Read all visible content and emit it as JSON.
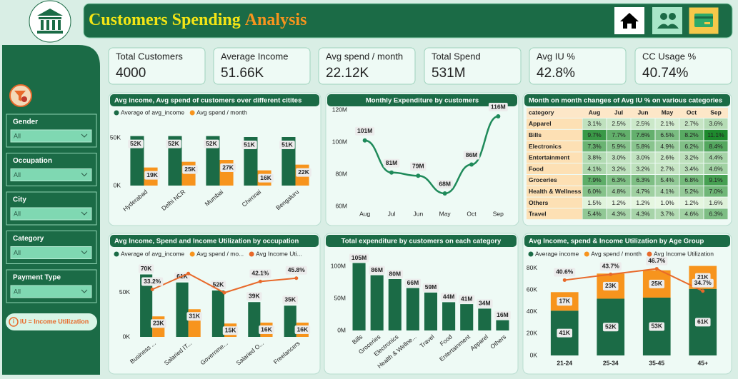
{
  "header": {
    "title_part1": "Customers Spending",
    "title_part2": "Analysis"
  },
  "kpis": [
    {
      "label": "Total Customers",
      "value": "4000"
    },
    {
      "label": "Average Income",
      "value": "51.66K"
    },
    {
      "label": "Avg spend / month",
      "value": "22.12K"
    },
    {
      "label": "Total Spend",
      "value": "531M"
    },
    {
      "label": "Avg IU %",
      "value": "42.8%"
    },
    {
      "label": "CC Usage %",
      "value": "40.74%"
    }
  ],
  "filters": [
    {
      "label": "Gender",
      "value": "All"
    },
    {
      "label": "Occupation",
      "value": "All"
    },
    {
      "label": "City",
      "value": "All"
    },
    {
      "label": "Category",
      "value": "All"
    },
    {
      "label": "Payment Type",
      "value": "All"
    }
  ],
  "note": "IU = Income Utilization",
  "chart_data": [
    {
      "type": "bar",
      "title": "Avg income, Avg spend of customers over different citites",
      "categories": [
        "Hyderabad",
        "Delhi NCR",
        "Mumbai",
        "Chennai",
        "Bengaluru"
      ],
      "series": [
        {
          "name": "Average of avg_income",
          "color": "#1b6b46",
          "values": [
            52000,
            52000,
            52000,
            51000,
            51000
          ],
          "value_labels": [
            "52K",
            "52K",
            "52K",
            "51K",
            "51K"
          ]
        },
        {
          "name": "Avg spend / month",
          "color": "#f7941d",
          "values": [
            19000,
            25000,
            27000,
            16000,
            22000
          ],
          "value_labels": [
            "19K",
            "25K",
            "27K",
            "16K",
            "22K"
          ]
        }
      ],
      "ylim": [
        0,
        60000
      ],
      "yticks": [
        {
          "value": 0,
          "label": "0K"
        },
        {
          "value": 50000,
          "label": "50K"
        }
      ]
    },
    {
      "type": "line",
      "title": "Monthly Expenditure by customers",
      "categories": [
        "Aug",
        "Jul",
        "Jun",
        "May",
        "Oct",
        "Sep"
      ],
      "values": [
        101000000,
        81000000,
        79000000,
        68000000,
        86000000,
        116000000
      ],
      "value_labels": [
        "101M",
        "81M",
        "79M",
        "68M",
        "86M",
        "116M"
      ],
      "color": "#1f8a5a",
      "ylim": [
        60000000,
        120000000
      ],
      "yticks": [
        {
          "value": 60000000,
          "label": "60M"
        },
        {
          "value": 80000000,
          "label": "80M"
        },
        {
          "value": 100000000,
          "label": "100M"
        },
        {
          "value": 120000000,
          "label": "120M"
        }
      ]
    },
    {
      "type": "heatmap",
      "title": "Month on month changes of Avg IU % on various categories",
      "column_header": "category",
      "columns": [
        "Aug",
        "Jul",
        "Jun",
        "May",
        "Oct",
        "Sep"
      ],
      "rows": [
        "Apparel",
        "Bills",
        "Electronics",
        "Entertainment",
        "Food",
        "Groceries",
        "Health & Wellness",
        "Others",
        "Travel"
      ],
      "values": [
        [
          3.1,
          2.5,
          2.5,
          2.1,
          2.7,
          3.6
        ],
        [
          9.7,
          7.7,
          7.6,
          6.5,
          8.2,
          11.1
        ],
        [
          7.3,
          5.9,
          5.8,
          4.9,
          6.2,
          8.4
        ],
        [
          3.8,
          3.0,
          3.0,
          2.6,
          3.2,
          4.4
        ],
        [
          4.1,
          3.2,
          3.2,
          2.7,
          3.4,
          4.6
        ],
        [
          7.9,
          6.3,
          6.3,
          5.4,
          6.8,
          9.1
        ],
        [
          6.0,
          4.8,
          4.7,
          4.1,
          5.2,
          7.0
        ],
        [
          1.5,
          1.2,
          1.2,
          1.0,
          1.2,
          1.6
        ],
        [
          5.4,
          4.3,
          4.3,
          3.7,
          4.6,
          6.3
        ]
      ],
      "value_labels": [
        [
          "3.1%",
          "2.5%",
          "2.5%",
          "2.1%",
          "2.7%",
          "3.6%"
        ],
        [
          "9.7%",
          "7.7%",
          "7.6%",
          "6.5%",
          "8.2%",
          "11.1%"
        ],
        [
          "7.3%",
          "5.9%",
          "5.8%",
          "4.9%",
          "6.2%",
          "8.4%"
        ],
        [
          "3.8%",
          "3.0%",
          "3.0%",
          "2.6%",
          "3.2%",
          "4.4%"
        ],
        [
          "4.1%",
          "3.2%",
          "3.2%",
          "2.7%",
          "3.4%",
          "4.6%"
        ],
        [
          "7.9%",
          "6.3%",
          "6.3%",
          "5.4%",
          "6.8%",
          "9.1%"
        ],
        [
          "6.0%",
          "4.8%",
          "4.7%",
          "4.1%",
          "5.2%",
          "7.0%"
        ],
        [
          "1.5%",
          "1.2%",
          "1.2%",
          "1.0%",
          "1.2%",
          "1.6%"
        ],
        [
          "5.4%",
          "4.3%",
          "4.3%",
          "3.7%",
          "4.6%",
          "6.3%"
        ]
      ],
      "colors": [
        "#e9f8e4",
        "#1e8a2e"
      ]
    },
    {
      "type": "combo",
      "title": "Avg Income, Spend and Income Utilization by occupation",
      "categories": [
        "Business ...",
        "Salaried IT...",
        "Governme...",
        "Salaried O...",
        "Freelancers"
      ],
      "series": [
        {
          "name": "Average of avg_income",
          "color": "#1b6b46",
          "values": [
            70000,
            61000,
            52000,
            39000,
            35000
          ],
          "value_labels": [
            "70K",
            "61K",
            "52K",
            "39K",
            "35K"
          ]
        },
        {
          "name": "Avg spend / mo...",
          "color": "#f7941d",
          "values": [
            23000,
            31000,
            15000,
            16000,
            16000
          ],
          "value_labels": [
            "23K",
            "31K",
            "15K",
            "16K",
            "16K"
          ]
        },
        {
          "name": "Avg Income Uti...",
          "color": "#e8692a",
          "axis": "y2",
          "values": [
            33.2,
            51,
            29.5,
            42.1,
            45.8
          ],
          "value_labels": [
            "33.2%",
            null,
            null,
            "42.1%",
            "45.8%"
          ]
        }
      ],
      "ylim": [
        0,
        80000
      ],
      "yticks": [
        {
          "value": 0,
          "label": "0K"
        },
        {
          "value": 50000,
          "label": "50K"
        }
      ],
      "y2lim": [
        -20,
        60
      ]
    },
    {
      "type": "bar",
      "title": "Total expenditure by customers on each category",
      "categories": [
        "Bills",
        "Groceries",
        "Electronics",
        "Health & Wellne...",
        "Travel",
        "Food",
        "Entertainment",
        "Apparel",
        "Others"
      ],
      "values": [
        105000000,
        86000000,
        80000000,
        66000000,
        59000000,
        44000000,
        41000000,
        34000000,
        16000000
      ],
      "value_labels": [
        "105M",
        "86M",
        "80M",
        "66M",
        "59M",
        "44M",
        "41M",
        "34M",
        "16M"
      ],
      "color": "#1b6b46",
      "ylim": [
        0,
        110000000
      ],
      "yticks": [
        {
          "value": 0,
          "label": "0M"
        },
        {
          "value": 50000000,
          "label": "50M"
        },
        {
          "value": 100000000,
          "label": "100M"
        }
      ]
    },
    {
      "type": "combo",
      "stacked": true,
      "title": "Avg Income, spend & Income Utilization by Age Group",
      "categories": [
        "21-24",
        "25-34",
        "35-45",
        "45+"
      ],
      "series": [
        {
          "name": "Average income",
          "color": "#1b6b46",
          "values": [
            41000,
            52000,
            53000,
            61000
          ],
          "value_labels": [
            "41K",
            "52K",
            "53K",
            "61K"
          ]
        },
        {
          "name": "Avg spend / month",
          "color": "#f7941d",
          "values": [
            17000,
            23000,
            25000,
            21000
          ],
          "value_labels": [
            "17K",
            "23K",
            "25K",
            "21K"
          ]
        },
        {
          "name": "Avg Income Utilization",
          "color": "#e8692a",
          "axis": "y2",
          "values": [
            40.6,
            43.7,
            46.7,
            34.7
          ],
          "value_labels": [
            "40.6%",
            "43.7%",
            "46.7%",
            "34.7%"
          ]
        }
      ],
      "ylim": [
        0,
        85000
      ],
      "y2lim": [
        0,
        50
      ],
      "yticks": [
        {
          "value": 0,
          "label": "0K"
        },
        {
          "value": 20000,
          "label": "20K"
        },
        {
          "value": 40000,
          "label": "40K"
        },
        {
          "value": 60000,
          "label": "60K"
        },
        {
          "value": 80000,
          "label": "80K"
        }
      ]
    }
  ]
}
